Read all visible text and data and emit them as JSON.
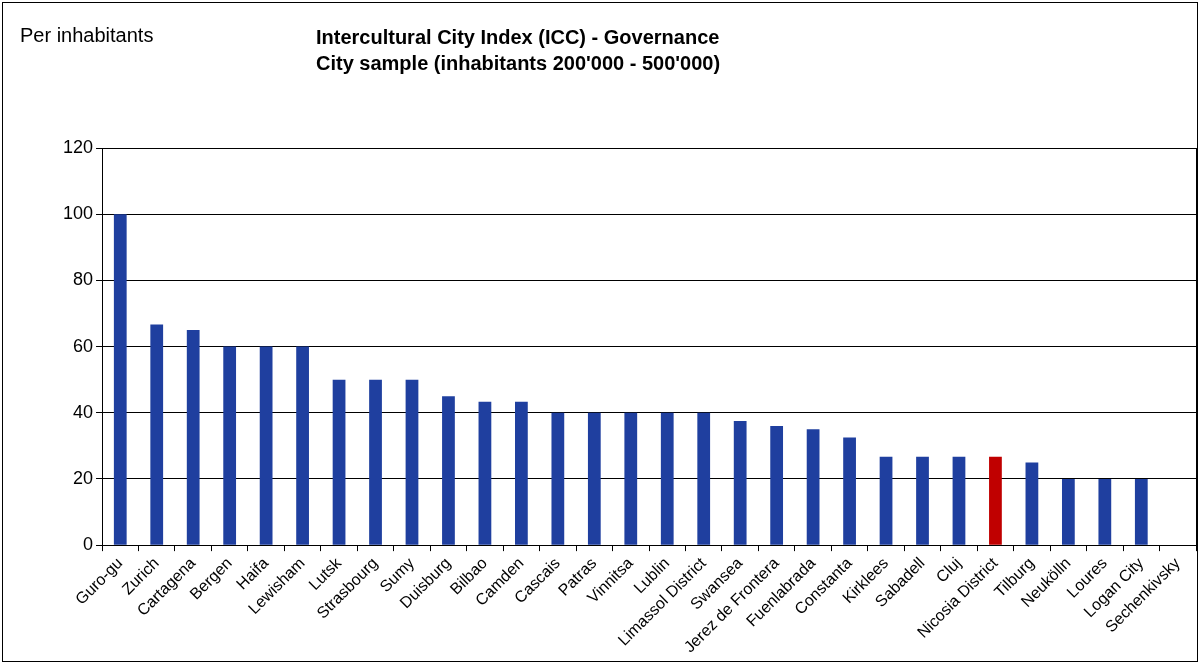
{
  "chart_data": {
    "type": "bar",
    "title": "Intercultural City Index (ICC) - Governance\nCity sample (inhabitants 200'000 - 500'000)",
    "ylabel": "Per inhabitants",
    "categories": [
      "Guro-gu",
      "Zurich",
      "Cartagena",
      "Bergen",
      "Haifa",
      "Lewisham",
      "Lutsk",
      "Strasbourg",
      "Sumy",
      "Duisburg",
      "Bilbao",
      "Camden",
      "Cascais",
      "Patras",
      "Vinnitsa",
      "Lublin",
      "Limassol District",
      "Swansea",
      "Jerez de Frontera",
      "Fuenlabrada",
      "Constanta",
      "Kirklees",
      "Sabadell",
      "Cluj",
      "Nicosia District",
      "Tilburg",
      "Neukölln",
      "Loures",
      "Logan City",
      "Sechenkivsky"
    ],
    "values": [
      100,
      66.7,
      65,
      60,
      60,
      60,
      50,
      50,
      50,
      45,
      43.3,
      43.3,
      40,
      40,
      40,
      40,
      40,
      37.5,
      36,
      35,
      32.5,
      26.7,
      26.7,
      26.7,
      26.7,
      25,
      20,
      20,
      20,
      0
    ],
    "colors": [
      "#1f3f9f",
      "#1f3f9f",
      "#1f3f9f",
      "#1f3f9f",
      "#1f3f9f",
      "#1f3f9f",
      "#1f3f9f",
      "#1f3f9f",
      "#1f3f9f",
      "#1f3f9f",
      "#1f3f9f",
      "#1f3f9f",
      "#1f3f9f",
      "#1f3f9f",
      "#1f3f9f",
      "#1f3f9f",
      "#1f3f9f",
      "#1f3f9f",
      "#1f3f9f",
      "#1f3f9f",
      "#1f3f9f",
      "#1f3f9f",
      "#1f3f9f",
      "#1f3f9f",
      "#c00000",
      "#1f3f9f",
      "#1f3f9f",
      "#1f3f9f",
      "#1f3f9f",
      "#1f3f9f"
    ],
    "ylim": [
      0,
      120
    ],
    "yticks": [
      0,
      20,
      40,
      60,
      80,
      100,
      120
    ],
    "grid": "y",
    "legend": false
  }
}
